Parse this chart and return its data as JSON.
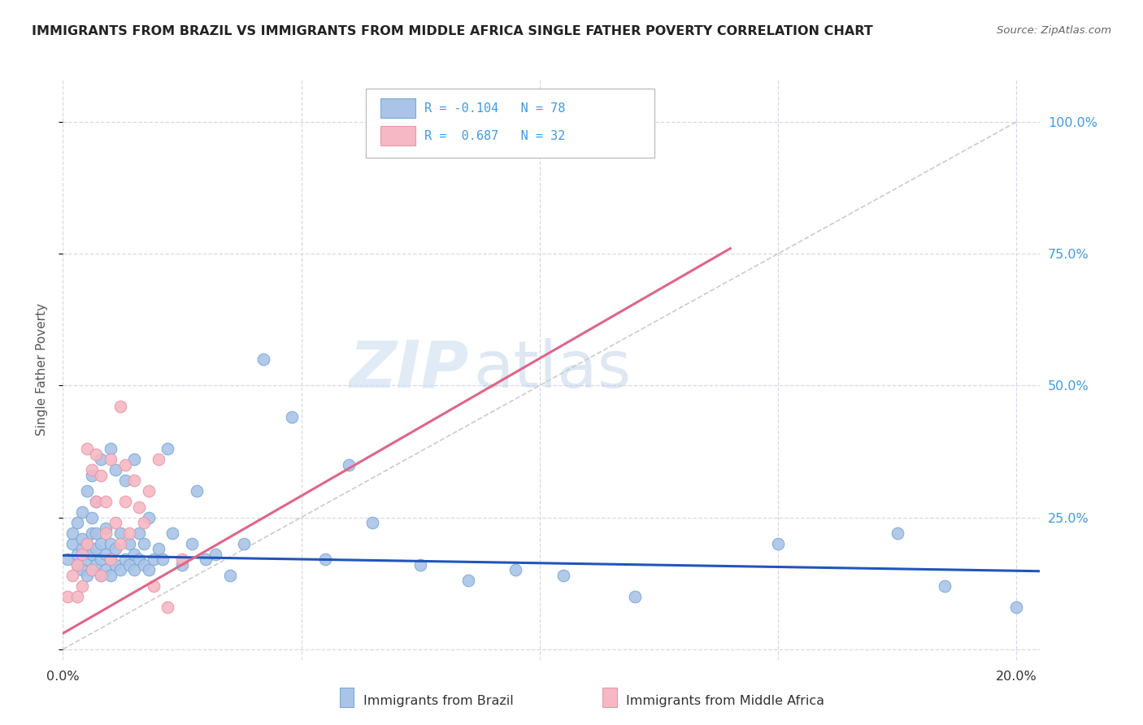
{
  "title": "IMMIGRANTS FROM BRAZIL VS IMMIGRANTS FROM MIDDLE AFRICA SINGLE FATHER POVERTY CORRELATION CHART",
  "source": "Source: ZipAtlas.com",
  "ylabel": "Single Father Poverty",
  "background_color": "#ffffff",
  "grid_color": "#d8d8e8",
  "watermark_zip": "ZIP",
  "watermark_atlas": "atlas",
  "brazil_color": "#aac4e8",
  "brazil_edge": "#7aaad4",
  "middle_africa_color": "#f5b8c4",
  "middle_africa_edge": "#e898a8",
  "brazil_R": -0.104,
  "brazil_N": 78,
  "middle_africa_R": 0.687,
  "middle_africa_N": 32,
  "blue_line_color": "#2255bb",
  "pink_line_color": "#dd6688",
  "diagonal_color": "#cccccc",
  "legend_label_brazil": "Immigrants from Brazil",
  "legend_label_middle_africa": "Immigrants from Middle Africa",
  "title_color": "#222222",
  "source_color": "#666666",
  "right_axis_color": "#4499dd",
  "xlim": [
    0.0,
    0.205
  ],
  "ylim": [
    -0.02,
    1.08
  ],
  "blue_line_x0": 0.0,
  "blue_line_y0": 0.178,
  "blue_line_x1": 0.205,
  "blue_line_y1": 0.148,
  "pink_line_x0": 0.0,
  "pink_line_y0": 0.03,
  "pink_line_x1": 0.14,
  "pink_line_y1": 0.76,
  "brazil_x": [
    0.001,
    0.002,
    0.002,
    0.003,
    0.003,
    0.003,
    0.004,
    0.004,
    0.004,
    0.004,
    0.005,
    0.005,
    0.005,
    0.005,
    0.006,
    0.006,
    0.006,
    0.006,
    0.006,
    0.007,
    0.007,
    0.007,
    0.007,
    0.008,
    0.008,
    0.008,
    0.008,
    0.009,
    0.009,
    0.009,
    0.01,
    0.01,
    0.01,
    0.01,
    0.011,
    0.011,
    0.011,
    0.012,
    0.012,
    0.013,
    0.013,
    0.014,
    0.014,
    0.015,
    0.015,
    0.015,
    0.016,
    0.016,
    0.017,
    0.017,
    0.018,
    0.018,
    0.019,
    0.02,
    0.021,
    0.022,
    0.023,
    0.025,
    0.027,
    0.028,
    0.03,
    0.032,
    0.035,
    0.038,
    0.042,
    0.048,
    0.055,
    0.06,
    0.065,
    0.075,
    0.085,
    0.095,
    0.105,
    0.12,
    0.15,
    0.175,
    0.185,
    0.2
  ],
  "brazil_y": [
    0.17,
    0.2,
    0.22,
    0.16,
    0.18,
    0.24,
    0.15,
    0.19,
    0.21,
    0.26,
    0.14,
    0.17,
    0.2,
    0.3,
    0.15,
    0.18,
    0.22,
    0.25,
    0.33,
    0.16,
    0.19,
    0.22,
    0.28,
    0.14,
    0.17,
    0.2,
    0.36,
    0.15,
    0.18,
    0.23,
    0.14,
    0.17,
    0.2,
    0.38,
    0.16,
    0.19,
    0.34,
    0.15,
    0.22,
    0.17,
    0.32,
    0.16,
    0.2,
    0.15,
    0.18,
    0.36,
    0.17,
    0.22,
    0.16,
    0.2,
    0.15,
    0.25,
    0.17,
    0.19,
    0.17,
    0.38,
    0.22,
    0.16,
    0.2,
    0.3,
    0.17,
    0.18,
    0.14,
    0.2,
    0.55,
    0.44,
    0.17,
    0.35,
    0.24,
    0.16,
    0.13,
    0.15,
    0.14,
    0.1,
    0.2,
    0.22,
    0.12,
    0.08
  ],
  "africa_x": [
    0.001,
    0.002,
    0.003,
    0.003,
    0.004,
    0.004,
    0.005,
    0.005,
    0.006,
    0.006,
    0.007,
    0.007,
    0.008,
    0.008,
    0.009,
    0.009,
    0.01,
    0.01,
    0.011,
    0.012,
    0.012,
    0.013,
    0.013,
    0.014,
    0.015,
    0.016,
    0.017,
    0.018,
    0.019,
    0.02,
    0.022,
    0.025
  ],
  "africa_y": [
    0.1,
    0.14,
    0.1,
    0.16,
    0.12,
    0.18,
    0.2,
    0.38,
    0.15,
    0.34,
    0.28,
    0.37,
    0.14,
    0.33,
    0.22,
    0.28,
    0.17,
    0.36,
    0.24,
    0.46,
    0.2,
    0.28,
    0.35,
    0.22,
    0.32,
    0.27,
    0.24,
    0.3,
    0.12,
    0.36,
    0.08,
    0.17
  ]
}
